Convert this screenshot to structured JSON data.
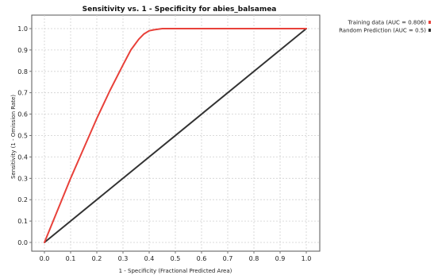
{
  "chart_data": {
    "type": "line",
    "title": "Sensitivity vs. 1 - Specificity for abies_balsamea",
    "xlabel": "1 - Specificity  (Fractional Predicted Area)",
    "ylabel": "Sensitivity  (1 - Omission Rate)",
    "xlim": [
      0.0,
      1.0
    ],
    "ylim": [
      0.0,
      1.0
    ],
    "xticks": [
      "0.0",
      "0.1",
      "0.2",
      "0.3",
      "0.4",
      "0.5",
      "0.6",
      "0.7",
      "0.8",
      "0.9",
      "1.0"
    ],
    "yticks": [
      "0.0",
      "0.1",
      "0.2",
      "0.3",
      "0.4",
      "0.5",
      "0.6",
      "0.7",
      "0.8",
      "0.9",
      "1.0"
    ],
    "grid": true,
    "legend_position": "top-right outside",
    "series": [
      {
        "name": "Training data (AUC = 0.806)",
        "color": "#e8413a",
        "x": [
          0.0,
          0.02,
          0.05,
          0.1,
          0.15,
          0.2,
          0.25,
          0.3,
          0.33,
          0.36,
          0.38,
          0.4,
          0.42,
          0.45,
          0.5,
          0.6,
          0.7,
          0.8,
          0.9,
          1.0
        ],
        "y": [
          0.0,
          0.06,
          0.15,
          0.3,
          0.44,
          0.58,
          0.71,
          0.83,
          0.9,
          0.95,
          0.975,
          0.99,
          0.995,
          1.0,
          1.0,
          1.0,
          1.0,
          1.0,
          1.0,
          1.0
        ]
      },
      {
        "name": "Random Prediction (AUC = 0.5)",
        "color": "#333333",
        "x": [
          0.0,
          1.0
        ],
        "y": [
          0.0,
          1.0
        ]
      }
    ]
  }
}
